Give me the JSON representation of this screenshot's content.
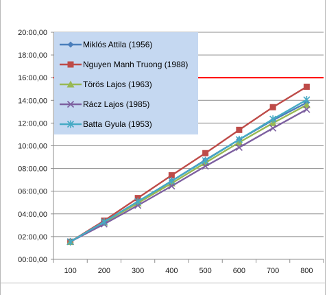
{
  "chart_data": {
    "type": "line",
    "title": "",
    "xlabel": "",
    "ylabel": "",
    "categories": [
      "100",
      "200",
      "300",
      "400",
      "500",
      "600",
      "700",
      "800"
    ],
    "x": [
      100,
      200,
      300,
      400,
      500,
      600,
      700,
      800
    ],
    "y_tick_labels": [
      "00:00,00",
      "02:00,00",
      "04:00,00",
      "06:00,00",
      "08:00,00",
      "10:00,00",
      "12:00,00",
      "14:00,00",
      "16:00,00",
      "18:00,00",
      "20:00,00"
    ],
    "ylim": [
      "00:00,00",
      "20:00,00"
    ],
    "ylim_minutes": [
      0,
      20
    ],
    "grid": "horizontal",
    "legend_position": "top-left",
    "reference_line": {
      "y": "16:00,00",
      "y_minutes": 16,
      "color": "#ff0000"
    },
    "series": [
      {
        "name": "Miklós Attila (1956)",
        "color": "#4a7ebb",
        "marker": "diamond",
        "values": [
          1.55,
          3.3,
          5.0,
          6.9,
          8.75,
          10.55,
          12.25,
          13.8
        ]
      },
      {
        "name": "Nguyen Manh Truong (1988)",
        "color": "#be4b48",
        "marker": "square",
        "values": [
          1.55,
          3.4,
          5.4,
          7.4,
          9.35,
          11.4,
          13.4,
          15.2
        ]
      },
      {
        "name": "Törös Lajos (1963)",
        "color": "#98b954",
        "marker": "triangle",
        "values": [
          1.55,
          3.25,
          4.95,
          6.7,
          8.5,
          10.3,
          12.0,
          13.6
        ]
      },
      {
        "name": "Rácz Lajos (1985)",
        "color": "#7d60a0",
        "marker": "x",
        "values": [
          1.55,
          3.1,
          4.75,
          6.45,
          8.2,
          9.85,
          11.55,
          13.2
        ]
      },
      {
        "name": "Batta Gyula (1953)",
        "color": "#46aac4",
        "marker": "star",
        "values": [
          1.55,
          3.3,
          5.1,
          6.9,
          8.7,
          10.55,
          12.35,
          14.05
        ]
      }
    ]
  }
}
